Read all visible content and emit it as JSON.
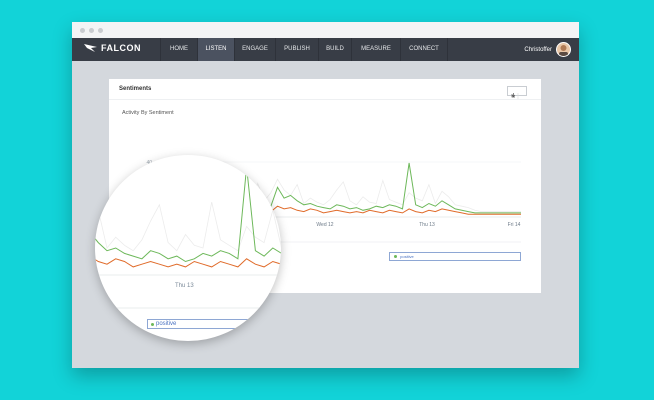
{
  "navbar": {
    "brand": "FALCON",
    "items": [
      "HOME",
      "LISTEN",
      "ENGAGE",
      "PUBLISH",
      "BUILD",
      "MEASURE",
      "CONNECT"
    ],
    "active_item": "LISTEN",
    "user_name": "Christoffer"
  },
  "panel": {
    "title": "Sentiments",
    "chart_label": "Activity By Sentiment"
  },
  "chart_data": {
    "type": "line",
    "x_ticks": [
      "Wed 12",
      "Thu 13",
      "Fri 14"
    ],
    "y_ticks": [
      "40"
    ],
    "legend": [
      "positive"
    ],
    "series": [
      {
        "name": "positive",
        "color": "#6db85a",
        "values": [
          4,
          6,
          5,
          7,
          9,
          6,
          4,
          5,
          7,
          8,
          5,
          4,
          3,
          2,
          5,
          10,
          7,
          8,
          22,
          14,
          16,
          12,
          9,
          10,
          8,
          7,
          6,
          9,
          8,
          6,
          7,
          5,
          6,
          8,
          7,
          9,
          8,
          6,
          40,
          9,
          7,
          10,
          8,
          12,
          9,
          6,
          5,
          4,
          3,
          3,
          3,
          3,
          3,
          3,
          3,
          3
        ]
      },
      {
        "color": "#e06b2a",
        "values": [
          2,
          3,
          2,
          4,
          3,
          5,
          3,
          2,
          4,
          3,
          2,
          2,
          1,
          2,
          3,
          4,
          5,
          4,
          8,
          6,
          7,
          5,
          4,
          6,
          5,
          3,
          4,
          5,
          4,
          3,
          4,
          3,
          5,
          4,
          3,
          5,
          4,
          3,
          6,
          4,
          3,
          5,
          4,
          6,
          5,
          4,
          3,
          2,
          2,
          2,
          2,
          2,
          2,
          2,
          2,
          2
        ]
      },
      {
        "color": "#ececec",
        "values": [
          5,
          8,
          6,
          12,
          9,
          7,
          6,
          10,
          9,
          14,
          8,
          11,
          6,
          9,
          10,
          25,
          12,
          18,
          28,
          20,
          16,
          24,
          10,
          14,
          11,
          9,
          13,
          20,
          26,
          12,
          9,
          15,
          11,
          10,
          27,
          13,
          11,
          9,
          18,
          14,
          12,
          24,
          10,
          19,
          15,
          9,
          8,
          7,
          5,
          4,
          4,
          4,
          4,
          4,
          4,
          4
        ]
      }
    ]
  },
  "magnifier": {
    "axis_label": "Thu 13",
    "legend_label": "positive"
  },
  "colors": {
    "background": "#12d3d8",
    "navbar": "#383d46",
    "positive": "#6db85a",
    "negative": "#e06b2a"
  }
}
